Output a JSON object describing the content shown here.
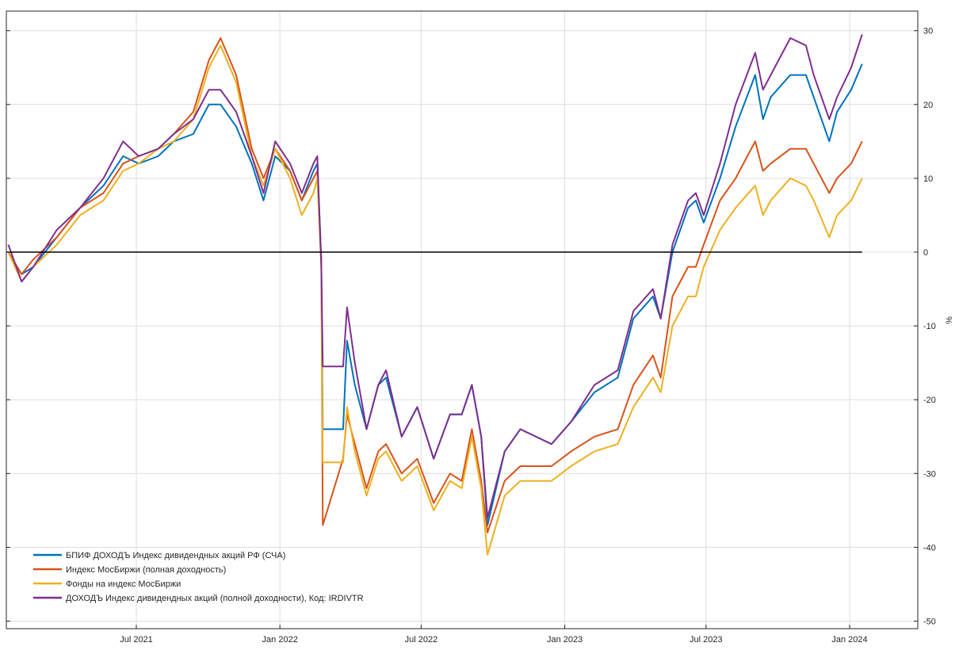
{
  "chart_data": {
    "type": "line",
    "title": "",
    "xlabel": "",
    "ylabel": "%",
    "ylim": [
      -50,
      30
    ],
    "xlim": [
      "2021-01-18",
      "2024-03-27"
    ],
    "yticks": [
      30,
      20,
      10,
      0,
      -10,
      -20,
      -30,
      -40,
      -50
    ],
    "xticks": [
      {
        "date": "2021-07-01",
        "label": "Jul 2021"
      },
      {
        "date": "2022-01-01",
        "label": "Jan 2022"
      },
      {
        "date": "2022-07-01",
        "label": "Jul 2022"
      },
      {
        "date": "2023-01-01",
        "label": "Jan 2023"
      },
      {
        "date": "2023-07-01",
        "label": "Jul 2023"
      },
      {
        "date": "2024-01-01",
        "label": "Jan 2024"
      }
    ],
    "y_axis_side": "right",
    "grid": true,
    "reference_line": 0,
    "legend_position": "bottom-left",
    "x": [
      "2021-01-18",
      "2021-02-04",
      "2021-02-19",
      "2021-03-21",
      "2021-04-20",
      "2021-05-20",
      "2021-06-14",
      "2021-07-04",
      "2021-07-29",
      "2021-08-18",
      "2021-09-12",
      "2021-10-02",
      "2021-10-17",
      "2021-11-06",
      "2021-11-26",
      "2021-12-11",
      "2021-12-26",
      "2022-01-14",
      "2022-01-29",
      "2022-02-13",
      "2022-02-18",
      "2022-02-23",
      "2022-02-25",
      "2022-03-23",
      "2022-03-28",
      "2022-04-07",
      "2022-04-22",
      "2022-05-07",
      "2022-05-17",
      "2022-06-06",
      "2022-06-26",
      "2022-07-17",
      "2022-08-07",
      "2022-08-22",
      "2022-09-04",
      "2022-09-16",
      "2022-09-24",
      "2022-10-16",
      "2022-11-05",
      "2022-12-15",
      "2023-01-09",
      "2023-02-08",
      "2023-03-10",
      "2023-03-30",
      "2023-04-24",
      "2023-05-04",
      "2023-05-19",
      "2023-06-08",
      "2023-06-18",
      "2023-06-28",
      "2023-07-19",
      "2023-08-08",
      "2023-09-02",
      "2023-09-12",
      "2023-09-22",
      "2023-10-17",
      "2023-11-06",
      "2023-11-16",
      "2023-12-06",
      "2023-12-16",
      "2024-01-03",
      "2024-01-17"
    ],
    "series": [
      {
        "name": "БПИФ ДОХОДЪ Индекс дивидендных акций РФ (СЧА)",
        "color": "#0072BD",
        "values": [
          0,
          -3,
          -2,
          2,
          6,
          9,
          13,
          12,
          13,
          15,
          16,
          20,
          20,
          17,
          12,
          7,
          13,
          11,
          7,
          11,
          12,
          -1,
          -24,
          -24,
          -12,
          -18,
          -24,
          -18,
          -17,
          -25,
          -21,
          -28,
          -22,
          -22,
          -18,
          -25,
          -37,
          -27,
          -24,
          -26,
          -23,
          -19,
          -17,
          -9,
          -6,
          -9,
          0,
          6,
          7,
          4,
          10,
          17,
          24,
          18,
          21,
          24,
          24,
          21,
          15,
          19,
          22,
          25.5
        ]
      },
      {
        "name": "Индекс МосБиржи (полная доходность)",
        "color": "#D95319",
        "values": [
          0,
          -3,
          -1,
          2,
          6,
          8,
          12,
          13,
          14,
          16,
          19,
          26,
          29,
          24,
          14,
          10,
          14,
          11,
          7,
          10,
          11,
          -1,
          -37,
          -28,
          -22,
          -26,
          -32,
          -27,
          -26,
          -30,
          -28,
          -34,
          -30,
          -31,
          -24,
          -31,
          -38,
          -31,
          -29,
          -29,
          -27,
          -25,
          -24,
          -18,
          -14,
          -17,
          -6,
          -2,
          -2,
          1,
          7,
          10,
          15,
          11,
          12,
          14,
          14,
          12,
          8,
          10,
          12,
          15
        ]
      },
      {
        "name": "Фонды на индекс МосБиржи",
        "color": "#EDB120",
        "values": [
          0,
          -4,
          -2,
          1,
          5,
          7,
          11,
          12,
          14,
          15,
          18,
          25,
          28,
          23,
          13,
          9,
          14,
          10,
          5,
          8,
          10,
          -2,
          -28.5,
          -28.5,
          -21,
          -27,
          -33,
          -28,
          -27,
          -31,
          -29,
          -35,
          -31,
          -32,
          -25,
          -32,
          -41,
          -33,
          -31,
          -31,
          -29,
          -27,
          -26,
          -21,
          -17,
          -19,
          -10,
          -6,
          -6,
          -2,
          3,
          6,
          9,
          5,
          7,
          10,
          9,
          7,
          2,
          5,
          7,
          10
        ]
      },
      {
        "name": "ДОХОДЪ Индекс дивидендных акций (полной доходности), Код: IRDIVTR",
        "color": "#7E2F8E",
        "values": [
          1,
          -4,
          -2,
          3,
          6,
          10,
          15,
          13,
          14,
          16,
          18,
          22,
          22,
          19,
          13,
          8,
          15,
          12,
          8,
          12,
          13,
          -2,
          -15.5,
          -15.5,
          -7.5,
          -15,
          -24,
          -18,
          -16,
          -25,
          -21,
          -28,
          -22,
          -22,
          -18,
          -25,
          -36,
          -27,
          -24,
          -26,
          -23,
          -18,
          -16,
          -8,
          -5,
          -9,
          1,
          7,
          8,
          5,
          12,
          20,
          27,
          22,
          24,
          29,
          28,
          24,
          18,
          21,
          25,
          29.5
        ]
      }
    ]
  }
}
